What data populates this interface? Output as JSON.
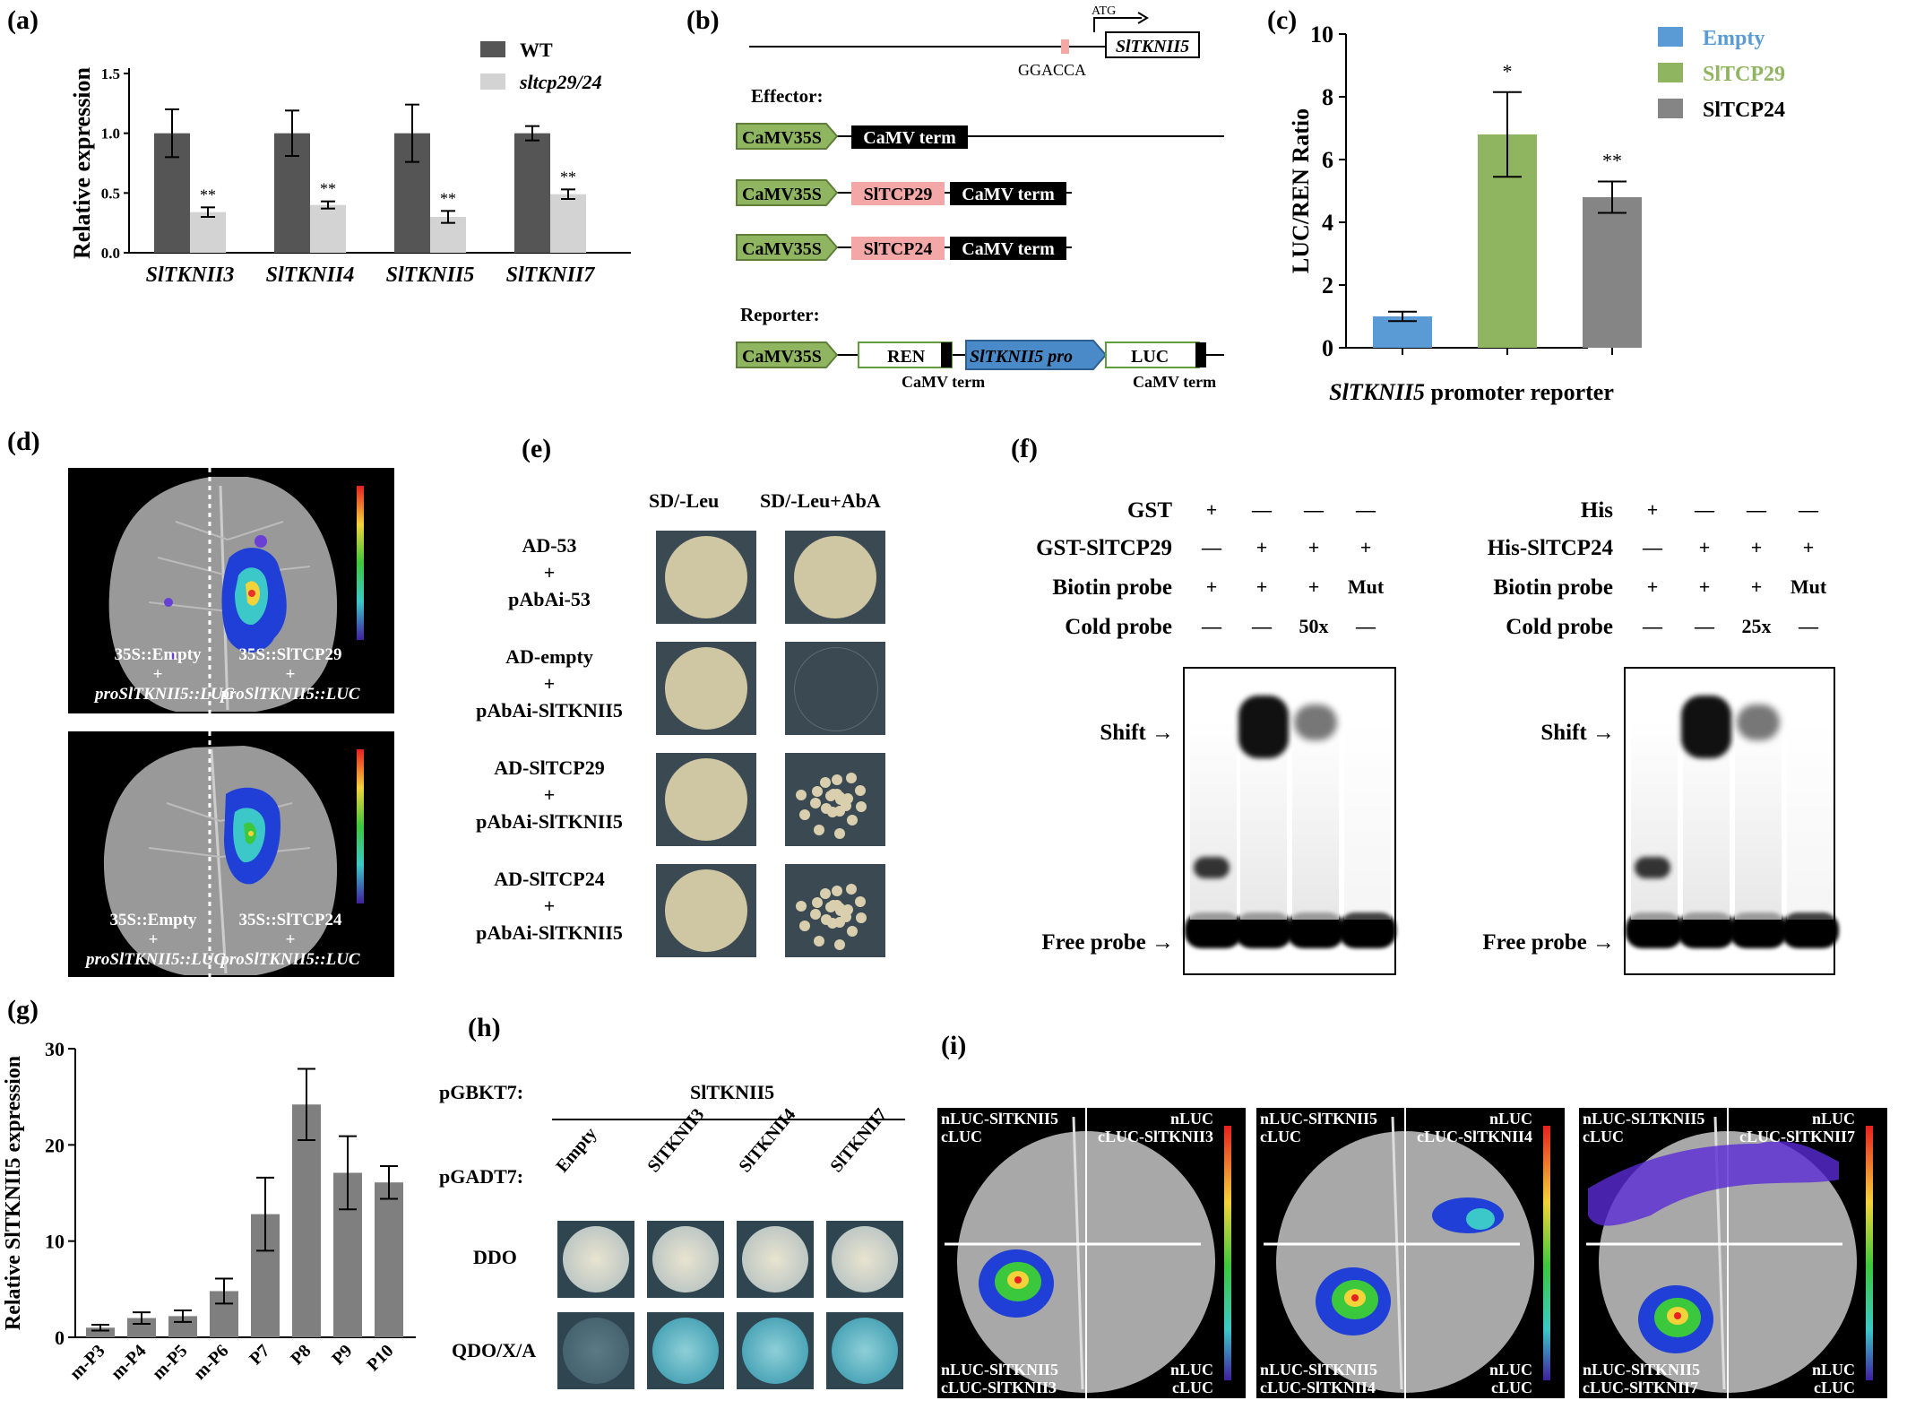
{
  "panels": {
    "a": "(a)",
    "b": "(b)",
    "c": "(c)",
    "d": "(d)",
    "e": "(e)",
    "f": "(f)",
    "g": "(g)",
    "h": "(h)",
    "i": "(i)"
  },
  "chart_a": {
    "type": "bar",
    "ylabel": "Relative expression",
    "yticks": [
      "0.0",
      "0.5",
      "1.0",
      "1.5"
    ],
    "categories": [
      "SlTKNII3",
      "SlTKNII4",
      "SlTKNII5",
      "SlTKNII7"
    ],
    "series": [
      {
        "name": "WT",
        "color": "#555555",
        "values": [
          1.0,
          1.0,
          1.0,
          1.0
        ],
        "err": [
          0.2,
          0.19,
          0.24,
          0.06
        ]
      },
      {
        "name": "sltcp29/24",
        "color": "#d3d3d3",
        "values": [
          0.34,
          0.4,
          0.3,
          0.49
        ],
        "err": [
          0.04,
          0.03,
          0.05,
          0.04
        ]
      }
    ],
    "sig": [
      "**",
      "**",
      "**",
      "**"
    ]
  },
  "panel_b": {
    "atg": "ATG",
    "gene": "SlTKNII5",
    "motif": "GGACCA",
    "effector_title": "Effector:",
    "reporter_title": "Reporter:",
    "camv35s": "CaMV35S",
    "camv_term": "CaMV term",
    "tcp29": "SlTCP29",
    "tcp24": "SlTCP24",
    "ren": "REN",
    "luc": "LUC",
    "promoter": "SlTKNII5 pro",
    "term_label1": "CaMV term",
    "term_label2": "CaMV term"
  },
  "chart_c": {
    "type": "bar",
    "ylabel": "LUC/REN Ratio",
    "xlabel_italic": "SlTKNII5",
    "xlabel_rest": " promoter reporter",
    "yticks": [
      "0",
      "2",
      "4",
      "6",
      "8",
      "10"
    ],
    "series": [
      {
        "name": "Empty",
        "color": "#5b9bd5",
        "value": 1.0,
        "err": 0.15,
        "sig": ""
      },
      {
        "name": "SlTCP29",
        "color": "#8fb560",
        "value": 6.8,
        "err": 1.35,
        "sig": "*"
      },
      {
        "name": "SlTCP24",
        "color": "#858585",
        "value": 4.8,
        "err": 0.5,
        "sig": "**"
      }
    ],
    "legend": [
      "Empty",
      "SlTCP29",
      "SlTCP24"
    ]
  },
  "panel_d": {
    "top_left1": "35S::Empty",
    "top_left2": "+",
    "top_left3": "proSlTKNII5::LUC",
    "top_right1": "35S::SlTCP29",
    "top_right2": "+",
    "top_right3": "proSlTKNII5::LUC",
    "bot_left1": "35S::Empty",
    "bot_left2": "+",
    "bot_left3": "proSlTKNII5::LUC",
    "bot_right1": "35S::SlTCP24",
    "bot_right2": "+",
    "bot_right3": "proSlTKNII5::LUC"
  },
  "panel_e": {
    "col1": "SD/-Leu",
    "col2": "SD/-Leu+AbA",
    "rows": [
      {
        "a": "AD-53",
        "b": "+",
        "c": "pAbAi-53"
      },
      {
        "a": "AD-empty",
        "b": "+",
        "c": "pAbAi-SlTKNII5"
      },
      {
        "a": "AD-SlTCP29",
        "b": "+",
        "c": "pAbAi-SlTKNII5"
      },
      {
        "a": "AD-SlTCP24",
        "b": "+",
        "c": "pAbAi-SlTKNII5"
      }
    ]
  },
  "panel_f": {
    "left": {
      "protein": "GST",
      "fusion": "GST-SlTCP29",
      "biotin": "Biotin probe",
      "cold": "Cold probe",
      "r1": [
        "+",
        "—",
        "—",
        "—"
      ],
      "r2": [
        "—",
        "+",
        "+",
        "+"
      ],
      "r3": [
        "+",
        "+",
        "+",
        "Mut"
      ],
      "r4": [
        "—",
        "—",
        "50x",
        "—"
      ]
    },
    "right": {
      "protein": "His",
      "fusion": "His-SlTCP24",
      "biotin": "Biotin probe",
      "cold": "Cold probe",
      "r1": [
        "+",
        "—",
        "—",
        "—"
      ],
      "r2": [
        "—",
        "+",
        "+",
        "+"
      ],
      "r3": [
        "+",
        "+",
        "+",
        "Mut"
      ],
      "r4": [
        "—",
        "—",
        "25x",
        "—"
      ]
    },
    "shift": "Shift →",
    "free": "Free probe →"
  },
  "chart_g": {
    "type": "bar",
    "ylabel": "Relative SlTKNII5 expression",
    "yticks": [
      "0",
      "10",
      "20",
      "30"
    ],
    "categories": [
      "m-P3",
      "m-P4",
      "m-P5",
      "m-P6",
      "P7",
      "P8",
      "P9",
      "P10"
    ],
    "values": [
      1.0,
      2.0,
      2.2,
      4.8,
      12.8,
      24.2,
      17.1,
      16.1
    ],
    "err": [
      0.3,
      0.6,
      0.6,
      1.3,
      3.8,
      3.7,
      3.8,
      1.7
    ],
    "color": "#7f7f7f"
  },
  "panel_h": {
    "pgbkt7": "pGBKT7:",
    "bait": "SlTKNII5",
    "pgadt7": "pGADT7:",
    "cols": [
      "Empty",
      "SlTKNII3",
      "SlTKNII4",
      "SlTKNII7"
    ],
    "rows": [
      "DDO",
      "QDO/X/A"
    ]
  },
  "panel_i": {
    "leaves": [
      {
        "tl1": "nLUC-SlTKNII5",
        "tl2": "cLUC",
        "tr1": "nLUC",
        "tr2": "cLUC-SlTKNII3",
        "bl1": "nLUC-SlTKNII5",
        "bl2": "cLUC-SlTKNII3",
        "br1": "nLUC",
        "br2": "cLUC"
      },
      {
        "tl1": "nLUC-SlTKNII5",
        "tl2": "cLUC",
        "tr1": "nLUC",
        "tr2": "cLUC-SlTKNII4",
        "bl1": "nLUC-SlTKNII5",
        "bl2": "cLUC-SlTKNII4",
        "br1": "nLUC",
        "br2": "cLUC"
      },
      {
        "tl1": "nLUC-SLTKNII5",
        "tl2": "cLUC",
        "tr1": "nLUC",
        "tr2": "cLUC-SlTKNII7",
        "bl1": "nLUC-SlTKNII5",
        "bl2": "cLUC-SlTKNII7",
        "br1": "nLUC",
        "br2": "cLUC"
      }
    ]
  }
}
